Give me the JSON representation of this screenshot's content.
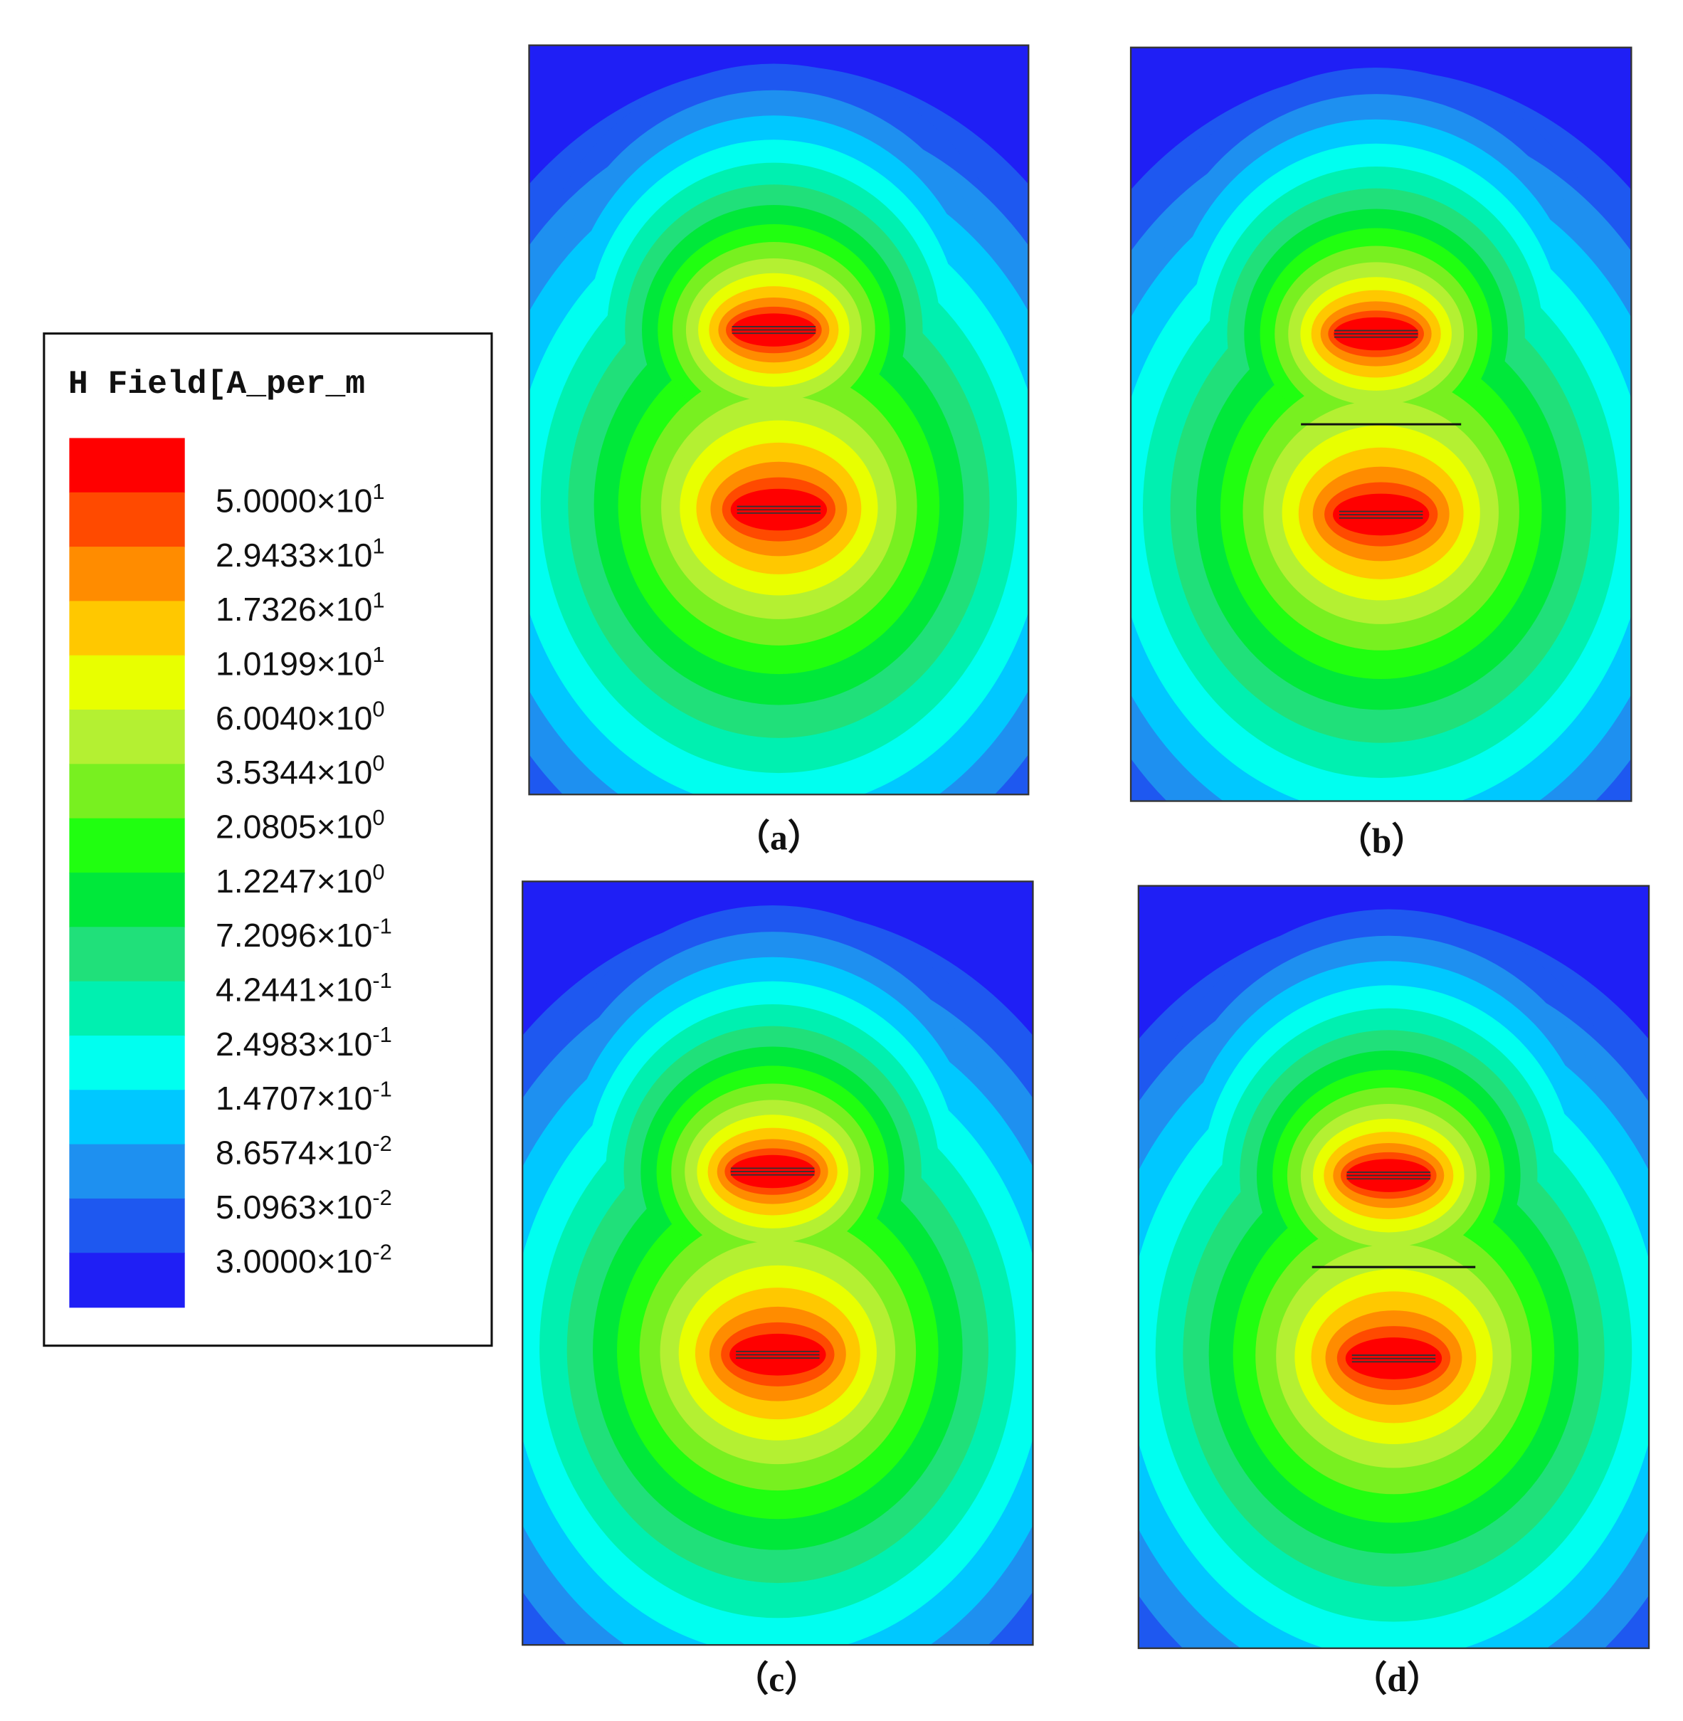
{
  "legend": {
    "title": "H Field[A_per_m",
    "colors": [
      "#ff0000",
      "#ff4a00",
      "#ff8c00",
      "#ffc800",
      "#e8ff00",
      "#b4f032",
      "#78f020",
      "#20ff10",
      "#00e83a",
      "#20e07a",
      "#00f0b0",
      "#00fff0",
      "#00c8ff",
      "#1e90f0",
      "#1e58f0",
      "#1f1ff5"
    ],
    "labels": [
      {
        "mantissa": "5.0000×10",
        "exponent": "1"
      },
      {
        "mantissa": "2.9433×10",
        "exponent": "1"
      },
      {
        "mantissa": "1.7326×10",
        "exponent": "1"
      },
      {
        "mantissa": "1.0199×10",
        "exponent": "1"
      },
      {
        "mantissa": "6.0040×10",
        "exponent": "0"
      },
      {
        "mantissa": "3.5344×10",
        "exponent": "0"
      },
      {
        "mantissa": "2.0805×10",
        "exponent": "0"
      },
      {
        "mantissa": "1.2247×10",
        "exponent": "0"
      },
      {
        "mantissa": "7.2096×10",
        "exponent": "-1"
      },
      {
        "mantissa": "4.2441×10",
        "exponent": "-1"
      },
      {
        "mantissa": "2.4983×10",
        "exponent": "-1"
      },
      {
        "mantissa": "1.4707×10",
        "exponent": "-1"
      },
      {
        "mantissa": "8.6574×10",
        "exponent": "-2"
      },
      {
        "mantissa": "5.0963×10",
        "exponent": "-2"
      },
      {
        "mantissa": "3.0000×10",
        "exponent": "-2"
      }
    ]
  },
  "panels": [
    {
      "caption": "（a）"
    },
    {
      "caption": "（b）"
    },
    {
      "caption": "（c）"
    },
    {
      "caption": "（d）"
    }
  ]
}
